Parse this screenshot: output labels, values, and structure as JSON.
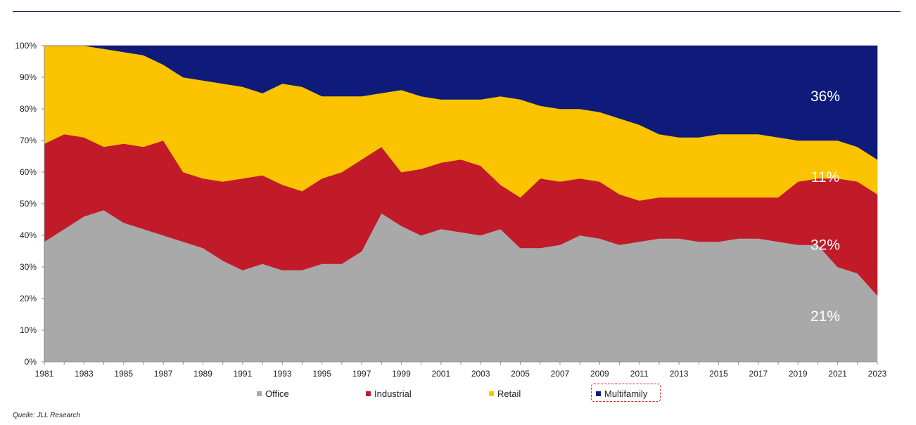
{
  "chart_data": {
    "type": "area",
    "stacked": true,
    "percent": true,
    "x": [
      1981,
      1982,
      1983,
      1984,
      1985,
      1986,
      1987,
      1988,
      1989,
      1990,
      1991,
      1992,
      1993,
      1994,
      1995,
      1996,
      1997,
      1998,
      1999,
      2000,
      2001,
      2002,
      2003,
      2004,
      2005,
      2006,
      2007,
      2008,
      2009,
      2010,
      2011,
      2012,
      2013,
      2014,
      2015,
      2016,
      2017,
      2018,
      2019,
      2020,
      2021,
      2022,
      2023
    ],
    "x_tick_labels": [
      "1981",
      "1983",
      "1985",
      "1987",
      "1989",
      "1991",
      "1993",
      "1995",
      "1997",
      "1999",
      "2001",
      "2003",
      "2005",
      "2007",
      "2009",
      "2011",
      "2013",
      "2015",
      "2017",
      "2019",
      "2021",
      "2023"
    ],
    "y_tick_labels": [
      "0%",
      "10%",
      "20%",
      "30%",
      "40%",
      "50%",
      "60%",
      "70%",
      "80%",
      "90%",
      "100%"
    ],
    "ylim": [
      0,
      100
    ],
    "series": [
      {
        "name": "Office",
        "color": "#a9a9a9",
        "values": [
          38,
          42,
          46,
          48,
          44,
          42,
          40,
          38,
          36,
          32,
          29,
          31,
          29,
          29,
          31,
          31,
          35,
          47,
          43,
          40,
          42,
          41,
          40,
          42,
          36,
          36,
          37,
          40,
          39,
          37,
          38,
          39,
          39,
          38,
          38,
          39,
          39,
          38,
          37,
          37,
          30,
          28,
          21
        ]
      },
      {
        "name": "Industrial",
        "color": "#c11b2a",
        "values": [
          31,
          30,
          25,
          20,
          25,
          26,
          30,
          22,
          22,
          25,
          29,
          28,
          27,
          25,
          27,
          29,
          29,
          21,
          17,
          21,
          21,
          23,
          22,
          14,
          16,
          22,
          20,
          18,
          18,
          16,
          13,
          13,
          13,
          14,
          14,
          13,
          13,
          14,
          20,
          21,
          28,
          29,
          32
        ]
      },
      {
        "name": "Retail",
        "color": "#fcc300",
        "values": [
          31,
          28,
          29,
          31,
          29,
          29,
          24,
          30,
          31,
          31,
          29,
          26,
          32,
          33,
          26,
          24,
          20,
          17,
          26,
          23,
          20,
          19,
          21,
          28,
          31,
          23,
          23,
          22,
          22,
          24,
          24,
          20,
          19,
          19,
          20,
          20,
          20,
          19,
          13,
          12,
          12,
          11,
          11
        ]
      },
      {
        "name": "Multifamily",
        "color": "#0e1b7a",
        "values": [
          0,
          0,
          0,
          1,
          2,
          3,
          6,
          10,
          11,
          12,
          13,
          15,
          12,
          13,
          16,
          16,
          16,
          15,
          14,
          16,
          17,
          17,
          17,
          16,
          17,
          19,
          20,
          20,
          21,
          23,
          25,
          28,
          29,
          29,
          28,
          28,
          28,
          29,
          30,
          30,
          30,
          32,
          36
        ]
      }
    ],
    "end_labels": [
      {
        "series": "Multifamily",
        "text": "36%"
      },
      {
        "series": "Retail",
        "text": "11%"
      },
      {
        "series": "Industrial",
        "text": "32%"
      },
      {
        "series": "Office",
        "text": "21%"
      }
    ],
    "legend": {
      "position": "bottom",
      "highlighted": "Multifamily"
    },
    "grid": false
  },
  "source": "Quelle: JLL Research"
}
